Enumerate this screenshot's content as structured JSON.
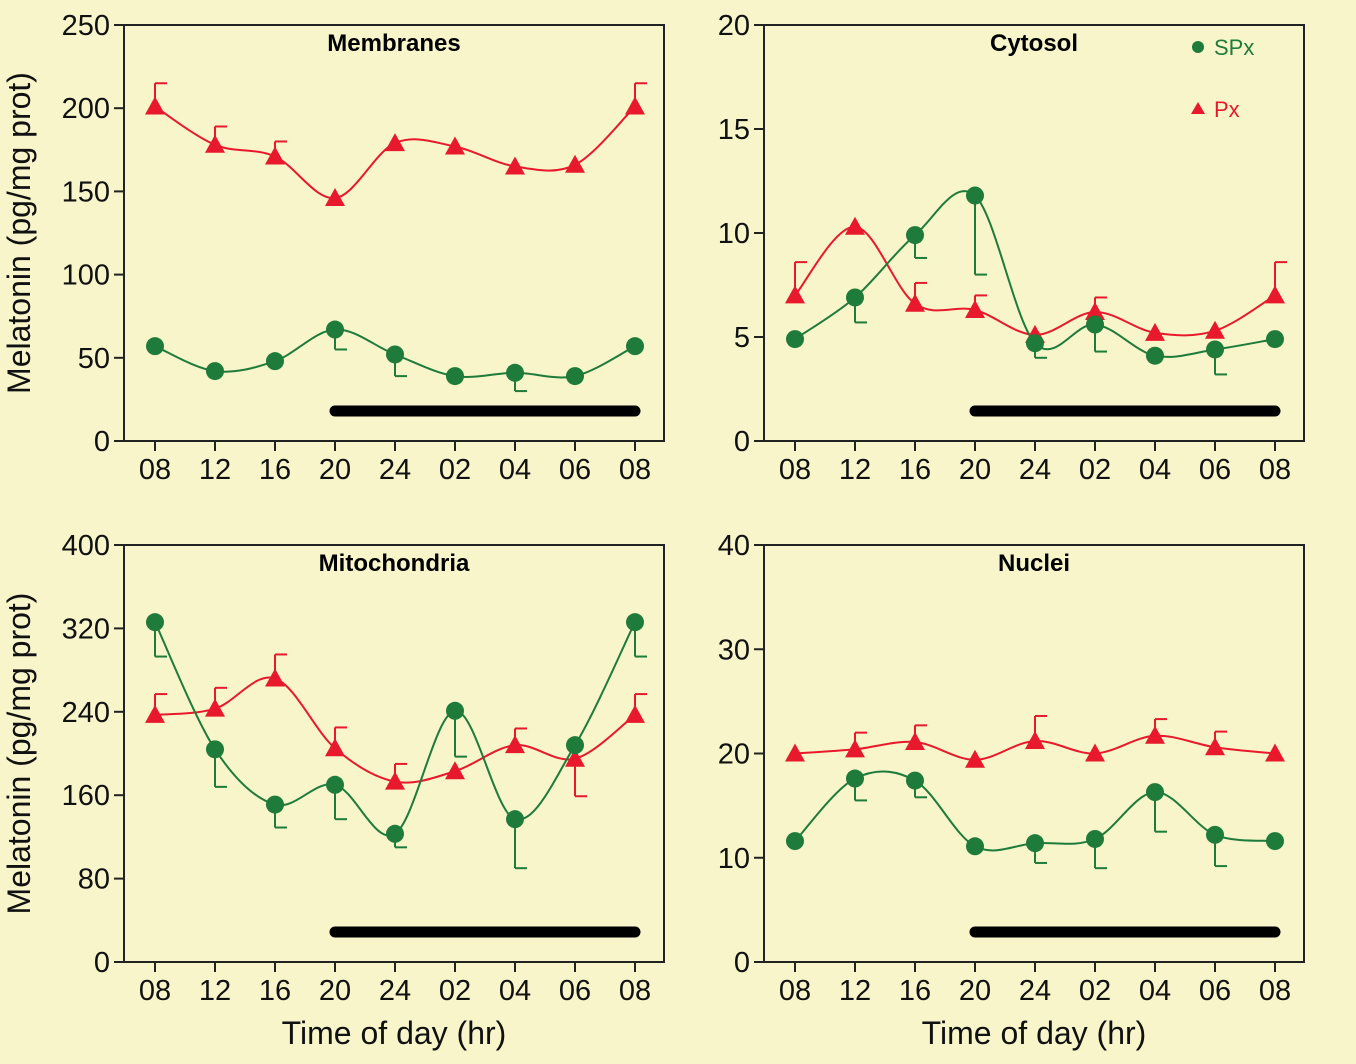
{
  "colors": {
    "background": "#F7F5C9",
    "spx": "#1E7B3A",
    "px": "#E8192C",
    "axis": "#222222",
    "night_bar": "#000000"
  },
  "legend": [
    {
      "label": "SPx",
      "marker": "circle",
      "color": "#1E7B3A"
    },
    {
      "label": "Px",
      "marker": "triangle",
      "color": "#E8192C"
    }
  ],
  "shared": {
    "x_categories": [
      "08",
      "12",
      "16",
      "20",
      "24",
      "02",
      "04",
      "06",
      "08"
    ],
    "xlabel": "Time of day (hr)",
    "ylabel": "Melatonin (pg/mg prot)"
  },
  "chart_data": [
    {
      "type": "line",
      "title": "Membranes",
      "categories": [
        "08",
        "12",
        "16",
        "20",
        "24",
        "02",
        "04",
        "06",
        "08"
      ],
      "xlabel": "",
      "ylabel": "Melatonin (pg/mg prot)",
      "ylim": [
        0,
        250
      ],
      "yticks": [
        0,
        50,
        100,
        150,
        200,
        250
      ],
      "night_bar": {
        "from": "20",
        "to": "08"
      },
      "series": [
        {
          "name": "Px",
          "marker": "triangle",
          "values": [
            201,
            178,
            171,
            146,
            179,
            177,
            165,
            166,
            201
          ],
          "error_up": [
            14,
            11,
            9,
            0,
            0,
            0,
            0,
            0,
            14
          ]
        },
        {
          "name": "SPx",
          "marker": "circle",
          "values": [
            57,
            42,
            48,
            67,
            52,
            39,
            41,
            39,
            57
          ],
          "error_down": [
            0,
            0,
            0,
            12,
            13,
            0,
            11,
            0,
            0
          ]
        }
      ]
    },
    {
      "type": "line",
      "title": "Cytosol",
      "categories": [
        "08",
        "12",
        "16",
        "20",
        "24",
        "02",
        "04",
        "06",
        "08"
      ],
      "xlabel": "",
      "ylabel": "",
      "ylim": [
        0,
        20
      ],
      "yticks": [
        0,
        5,
        10,
        15,
        20
      ],
      "night_bar": {
        "from": "20",
        "to": "08"
      },
      "legend_position": "top-right",
      "series": [
        {
          "name": "Px",
          "marker": "triangle",
          "values": [
            7.0,
            10.3,
            6.6,
            6.3,
            5.1,
            6.2,
            5.2,
            5.3,
            7.0
          ],
          "error_up": [
            1.6,
            0,
            1.0,
            0.7,
            0,
            0.7,
            0,
            0,
            1.6
          ]
        },
        {
          "name": "SPx",
          "marker": "circle",
          "values": [
            4.9,
            6.9,
            9.9,
            11.8,
            4.7,
            5.6,
            4.1,
            4.4,
            4.9
          ],
          "error_down": [
            0,
            1.2,
            1.1,
            3.8,
            0.7,
            1.3,
            0,
            1.2,
            0
          ]
        }
      ]
    },
    {
      "type": "line",
      "title": "Mitochondria",
      "categories": [
        "08",
        "12",
        "16",
        "20",
        "24",
        "02",
        "04",
        "06",
        "08"
      ],
      "xlabel": "Time of day (hr)",
      "ylabel": "Melatonin (pg/mg prot)",
      "ylim": [
        0,
        400
      ],
      "yticks": [
        0,
        80,
        160,
        240,
        320,
        400
      ],
      "night_bar": {
        "from": "20",
        "to": "08"
      },
      "series": [
        {
          "name": "Px",
          "marker": "triangle",
          "values": [
            237,
            243,
            272,
            205,
            173,
            183,
            208,
            195,
            237
          ],
          "error_up": [
            20,
            20,
            23,
            20,
            17,
            0,
            16,
            0,
            20
          ],
          "error_down": [
            0,
            0,
            0,
            0,
            0,
            0,
            0,
            36,
            0
          ]
        },
        {
          "name": "SPx",
          "marker": "circle",
          "values": [
            326,
            204,
            151,
            170,
            123,
            241,
            137,
            208,
            326
          ],
          "error_down": [
            33,
            36,
            22,
            33,
            13,
            44,
            47,
            0,
            33
          ]
        }
      ]
    },
    {
      "type": "line",
      "title": "Nuclei",
      "categories": [
        "08",
        "12",
        "16",
        "20",
        "24",
        "02",
        "04",
        "06",
        "08"
      ],
      "xlabel": "Time of day (hr)",
      "ylabel": "",
      "ylim": [
        0,
        40
      ],
      "yticks": [
        0,
        10,
        20,
        30,
        40
      ],
      "night_bar": {
        "from": "20",
        "to": "08"
      },
      "series": [
        {
          "name": "Px",
          "marker": "triangle",
          "values": [
            20.0,
            20.4,
            21.1,
            19.4,
            21.2,
            20.0,
            21.7,
            20.6,
            20.0
          ],
          "error_up": [
            0,
            1.6,
            1.6,
            0,
            2.4,
            0,
            1.6,
            1.5,
            0
          ]
        },
        {
          "name": "SPx",
          "marker": "circle",
          "values": [
            11.6,
            17.6,
            17.4,
            11.1,
            11.4,
            11.8,
            16.3,
            12.2,
            11.6
          ],
          "error_down": [
            0,
            2.1,
            1.6,
            0,
            1.9,
            2.8,
            3.8,
            3.0,
            0
          ]
        }
      ]
    }
  ]
}
